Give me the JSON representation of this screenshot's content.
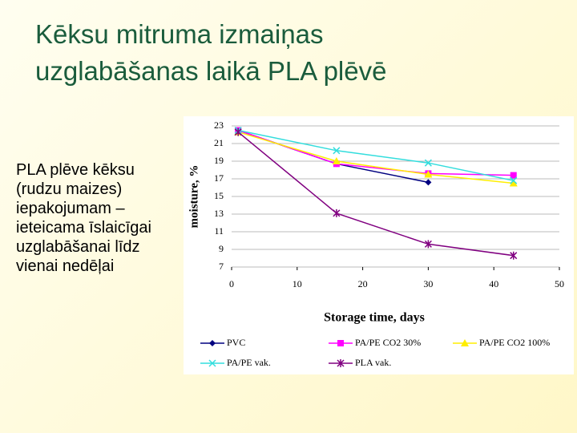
{
  "slide": {
    "title_lines": [
      "Kēksu mitruma izmaiņas",
      "uzglabāšanas laikā PLA plēvē"
    ],
    "text": "PLA plēve kēksu (rudzu maizes) iepakojumam – ieteicama īslaicīgai uzglabāšanai līdz vienai nedēļai"
  },
  "chart_data": {
    "type": "line",
    "x_label": "Storage time, days",
    "y_label": "moisture, %",
    "x": [
      1,
      16,
      30,
      43
    ],
    "series": [
      {
        "name": "PVC",
        "color": "#000080",
        "values": [
          22.5,
          18.7,
          16.6,
          null
        ]
      },
      {
        "name": "PA/PE CO2 30%",
        "color": "#ff00ff",
        "values": [
          22.5,
          18.7,
          17.6,
          17.4
        ]
      },
      {
        "name": "PA/PE CO2 100%",
        "color": "#ffee00",
        "values": [
          22.3,
          19,
          17.5,
          16.5
        ]
      },
      {
        "name": "PA/PE vak.",
        "color": "#33dddd",
        "values": [
          22.5,
          20.2,
          18.8,
          16.8
        ]
      },
      {
        "name": "PLA vak.",
        "color": "#800080",
        "values": [
          22.3,
          13.1,
          9.6,
          8.3
        ]
      }
    ],
    "xlim": [
      0,
      50
    ],
    "xticks": [
      0,
      10,
      20,
      30,
      40,
      50
    ],
    "ylim": [
      7,
      23
    ],
    "yticks": [
      7,
      9,
      11,
      13,
      15,
      17,
      19,
      21,
      23
    ],
    "grid": true
  }
}
